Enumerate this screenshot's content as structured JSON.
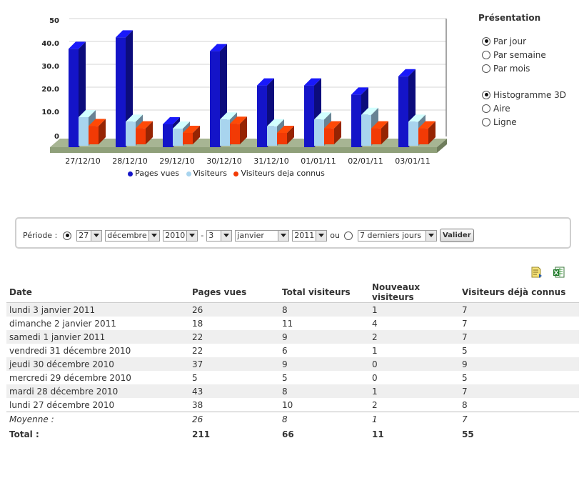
{
  "chart_data": {
    "type": "bar",
    "categories": [
      "27/12/10",
      "28/12/10",
      "29/12/10",
      "30/12/10",
      "31/12/10",
      "01/01/11",
      "02/01/11",
      "03/01/11"
    ],
    "series": [
      {
        "name": "Pages vues",
        "values": [
          38,
          43,
          5,
          37,
          22,
          22,
          18,
          26
        ],
        "color": "#1414c8"
      },
      {
        "name": "Visiteurs",
        "values": [
          10,
          8,
          5,
          9,
          6,
          9,
          11,
          8
        ],
        "color": "#a8d4ee"
      },
      {
        "name": "Visiteurs deja connus",
        "values": [
          8,
          7,
          5,
          9,
          5,
          7,
          7,
          7
        ],
        "color": "#f23a05"
      }
    ],
    "y_ticks": [
      "0",
      "10.0",
      "20.0",
      "30.0",
      "40.0",
      "50"
    ],
    "ylim": [
      0,
      50
    ],
    "legend_position": "bottom"
  },
  "presentation": {
    "title": "Présentation",
    "period_options": [
      {
        "label": "Par jour",
        "checked": true
      },
      {
        "label": "Par semaine",
        "checked": false
      },
      {
        "label": "Par mois",
        "checked": false
      }
    ],
    "chart_options": [
      {
        "label": "Histogramme 3D",
        "checked": true
      },
      {
        "label": "Aire",
        "checked": false
      },
      {
        "label": "Ligne",
        "checked": false
      }
    ]
  },
  "periode": {
    "label": "Période :",
    "from_day": "27",
    "from_month": "décembre",
    "from_year": "2010",
    "separator": "-",
    "to_day": "3",
    "to_month": "janvier",
    "to_year": "2011",
    "or_label": "ou",
    "preset": "7 derniers jours",
    "submit": "Valider"
  },
  "export": {
    "icons": [
      "export-report-icon",
      "export-excel-icon"
    ]
  },
  "table": {
    "headers": [
      "Date",
      "Pages vues",
      "Total visiteurs",
      "Nouveaux visiteurs",
      "Visiteurs déjà connus"
    ],
    "rows": [
      [
        "lundi 3 janvier 2011",
        "26",
        "8",
        "1",
        "7"
      ],
      [
        "dimanche 2 janvier 2011",
        "18",
        "11",
        "4",
        "7"
      ],
      [
        "samedi 1 janvier 2011",
        "22",
        "9",
        "2",
        "7"
      ],
      [
        "vendredi 31 décembre 2010",
        "22",
        "6",
        "1",
        "5"
      ],
      [
        "jeudi 30 décembre 2010",
        "37",
        "9",
        "0",
        "9"
      ],
      [
        "mercredi 29 décembre 2010",
        "5",
        "5",
        "0",
        "5"
      ],
      [
        "mardi 28 décembre 2010",
        "43",
        "8",
        "1",
        "7"
      ],
      [
        "lundi 27 décembre 2010",
        "38",
        "10",
        "2",
        "8"
      ]
    ],
    "average": [
      "Moyenne :",
      "26",
      "8",
      "1",
      "7"
    ],
    "total": [
      "Total :",
      "211",
      "66",
      "11",
      "55"
    ]
  }
}
